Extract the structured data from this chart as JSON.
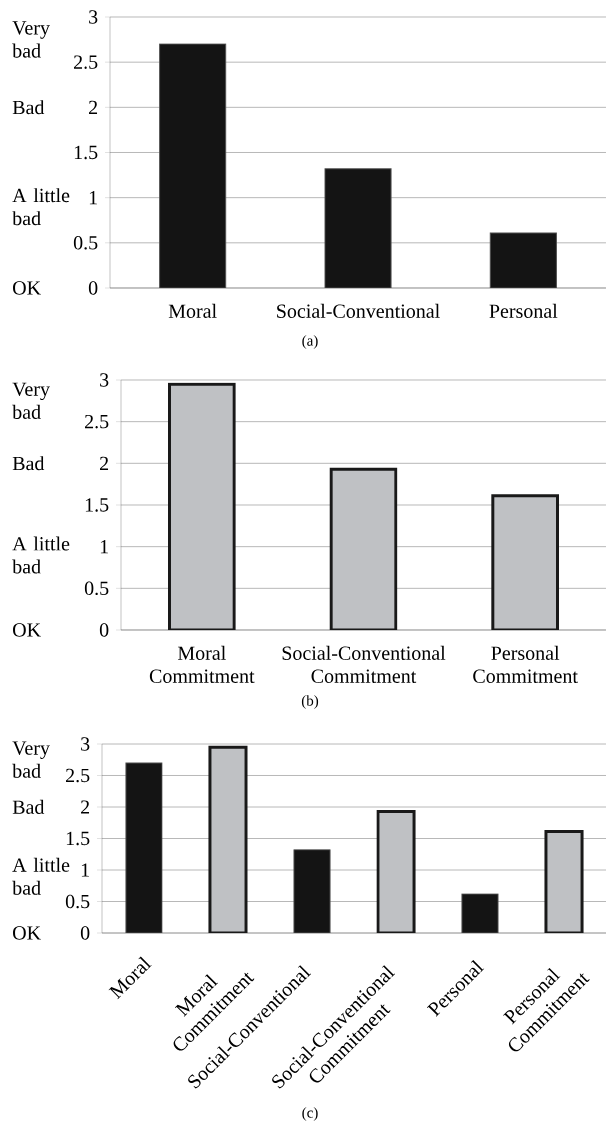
{
  "chart_data": [
    {
      "type": "bar",
      "categories": [
        "Moral",
        "Social-Conventional",
        "Personal"
      ],
      "values": [
        2.7,
        1.32,
        0.61
      ],
      "colors": [
        "#141414",
        "#141414",
        "#141414"
      ],
      "ylim": [
        0,
        3
      ],
      "yticks": [
        0,
        0.5,
        1,
        1.5,
        2,
        2.5,
        3
      ],
      "grid": "y",
      "annotations": [
        "Very bad",
        "Bad",
        "A little bad",
        "OK",
        "(a)"
      ]
    },
    {
      "type": "bar",
      "categories": [
        "Moral Commitment",
        "Social-Conventional Commitment",
        "Personal Commitment"
      ],
      "values": [
        2.95,
        1.93,
        1.61
      ],
      "colors": [
        "#bfc1c4",
        "#bfc1c4",
        "#bfc1c4"
      ],
      "ylim": [
        0,
        3
      ],
      "yticks": [
        0,
        0.5,
        1,
        1.5,
        2,
        2.5,
        3
      ],
      "grid": "y",
      "annotations": [
        "Very bad",
        "Bad",
        "A little bad",
        "OK",
        "(b)"
      ]
    },
    {
      "type": "bar",
      "categories": [
        "Moral",
        "Moral Commitment",
        "Social-Conventional",
        "Social-Conventional Commitment",
        "Personal",
        "Personal Commitment"
      ],
      "values": [
        2.7,
        2.95,
        1.32,
        1.93,
        0.62,
        1.61
      ],
      "colors": [
        "#141414",
        "#bfc1c4",
        "#141414",
        "#bfc1c4",
        "#141414",
        "#bfc1c4"
      ],
      "ylim": [
        0,
        3
      ],
      "yticks": [
        0,
        0.5,
        1,
        1.5,
        2,
        2.5,
        3
      ],
      "grid": "y",
      "annotations": [
        "Very bad",
        "Bad",
        "A little bad",
        "OK",
        "(c)"
      ]
    }
  ]
}
